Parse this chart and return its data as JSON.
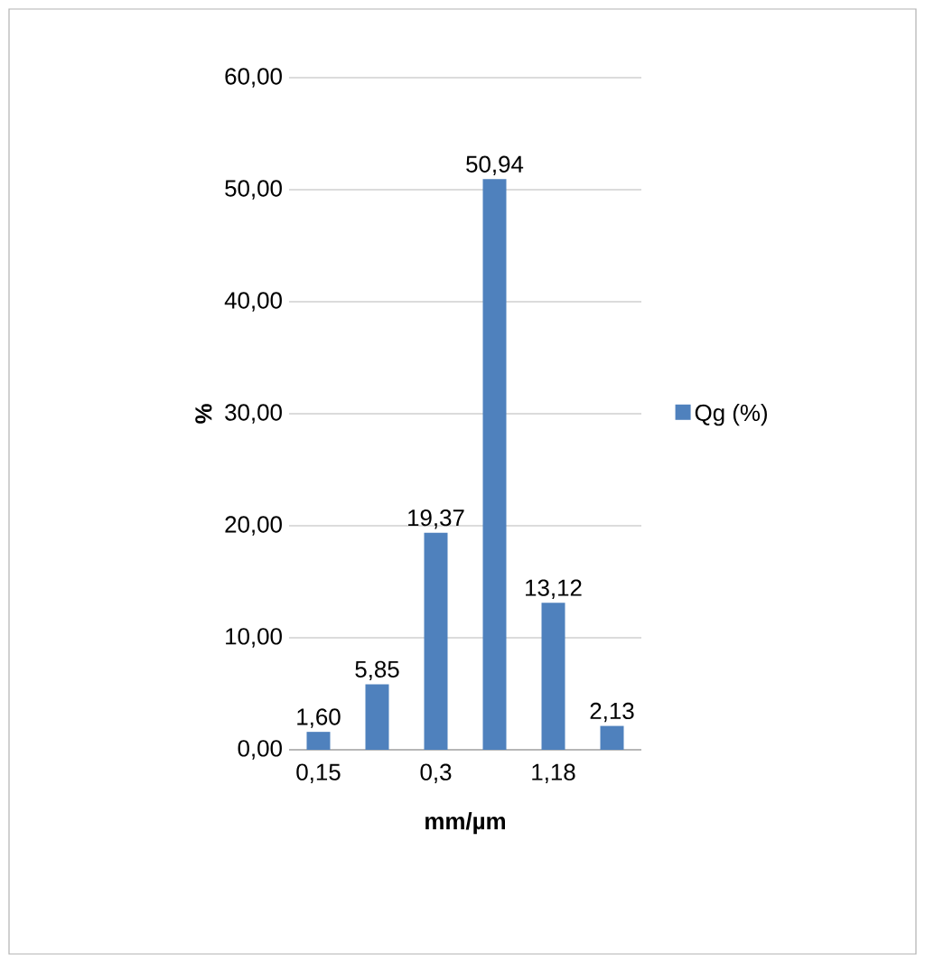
{
  "chart_data": {
    "type": "bar",
    "xlabel": "mm/µm",
    "ylabel": "%",
    "categories": [
      "0,15",
      null,
      "0,3",
      null,
      "1,18",
      null
    ],
    "series": [
      {
        "name": "Qg (%)",
        "color": "#4f81bd",
        "values": [
          1.6,
          5.85,
          19.37,
          50.94,
          13.12,
          2.13
        ],
        "value_labels": [
          "1,60",
          "5,85",
          "19,37",
          "50,94",
          "13,12",
          "2,13"
        ]
      }
    ],
    "ylim": [
      0,
      60
    ],
    "yticks": [
      {
        "value": 0,
        "label": "0,00"
      },
      {
        "value": 10,
        "label": "10,00"
      },
      {
        "value": 20,
        "label": "20,00"
      },
      {
        "value": 30,
        "label": "30,00"
      },
      {
        "value": 40,
        "label": "40,00"
      },
      {
        "value": 50,
        "label": "50,00"
      },
      {
        "value": 60,
        "label": "60,00"
      }
    ],
    "grid": "y",
    "legend": "right"
  }
}
